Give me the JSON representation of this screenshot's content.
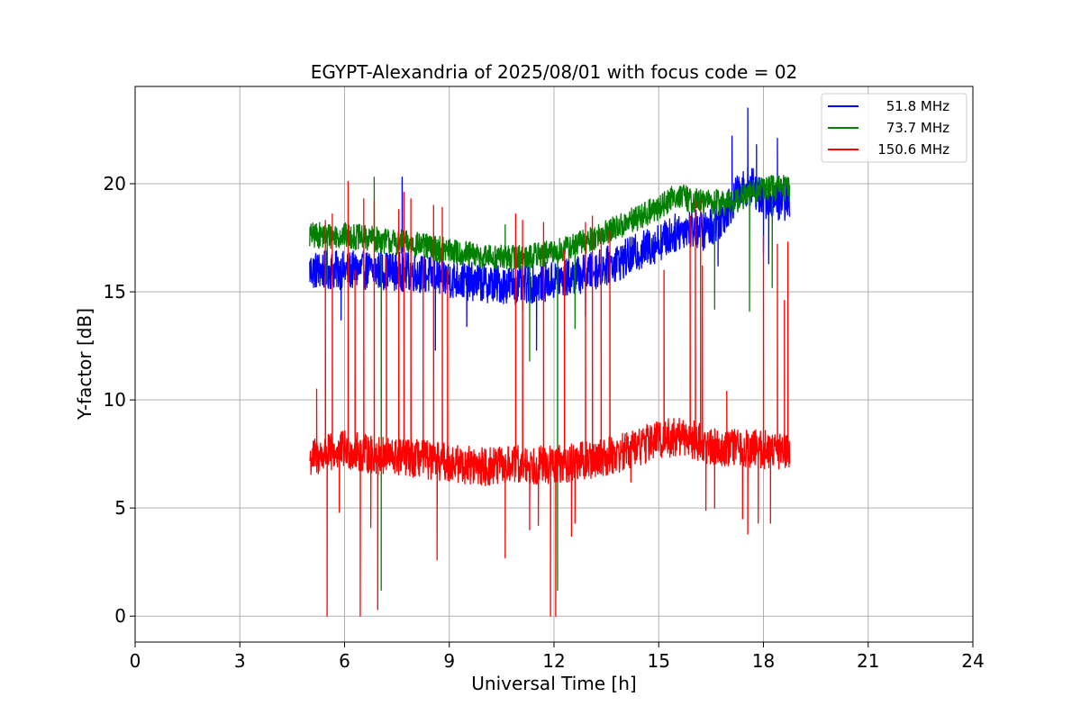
{
  "chart_data": {
    "type": "line",
    "title": "EGYPT-Alexandria of 2025/08/01 with focus code = 02",
    "xlabel": "Universal Time [h]",
    "ylabel": "Y-factor [dB]",
    "xlim": [
      0,
      24
    ],
    "ylim": [
      -1.2,
      24.5
    ],
    "x_ticks": [
      0,
      3,
      6,
      9,
      12,
      15,
      18,
      21,
      24
    ],
    "y_ticks": [
      0,
      5,
      10,
      15,
      20
    ],
    "grid": true,
    "legend_position": "top-right",
    "series": [
      {
        "name": "51.8 MHz",
        "color": "#0000ff",
        "baseline": [
          [
            5.0,
            16.0
          ],
          [
            6.0,
            16.0
          ],
          [
            7.0,
            16.0
          ],
          [
            8.0,
            15.9
          ],
          [
            9.0,
            15.6
          ],
          [
            10.0,
            15.4
          ],
          [
            11.0,
            15.3
          ],
          [
            12.0,
            15.5
          ],
          [
            13.0,
            15.9
          ],
          [
            14.0,
            16.5
          ],
          [
            15.0,
            17.3
          ],
          [
            15.8,
            18.0
          ],
          [
            16.3,
            17.8
          ],
          [
            16.8,
            18.4
          ],
          [
            17.2,
            19.4
          ],
          [
            17.6,
            20.0
          ],
          [
            18.0,
            19.3
          ],
          [
            18.4,
            19.2
          ],
          [
            18.75,
            19.2
          ]
        ],
        "noise": 0.9,
        "spikes": [
          [
            5.9,
            13.7
          ],
          [
            7.65,
            20.3
          ],
          [
            8.6,
            12.3
          ],
          [
            9.5,
            13.4
          ],
          [
            11.5,
            12.3
          ],
          [
            12.9,
            13.9
          ],
          [
            16.7,
            16.2
          ],
          [
            17.1,
            22.2
          ],
          [
            17.55,
            23.5
          ],
          [
            17.8,
            21.8
          ],
          [
            18.0,
            16.8
          ],
          [
            18.15,
            16.3
          ],
          [
            18.4,
            22.1
          ]
        ]
      },
      {
        "name": "73.7 MHz",
        "color": "#008000",
        "baseline": [
          [
            5.0,
            17.6
          ],
          [
            6.0,
            17.6
          ],
          [
            7.0,
            17.4
          ],
          [
            8.0,
            17.2
          ],
          [
            9.0,
            16.9
          ],
          [
            10.0,
            16.6
          ],
          [
            11.0,
            16.6
          ],
          [
            12.0,
            16.8
          ],
          [
            13.0,
            17.4
          ],
          [
            14.0,
            18.1
          ],
          [
            15.0,
            18.9
          ],
          [
            15.5,
            19.5
          ],
          [
            16.0,
            19.2
          ],
          [
            17.0,
            19.1
          ],
          [
            18.0,
            19.8
          ],
          [
            18.75,
            19.8
          ]
        ],
        "noise": 0.6,
        "spikes": [
          [
            5.5,
            15.5
          ],
          [
            6.85,
            20.3
          ],
          [
            7.05,
            1.2
          ],
          [
            12.1,
            1.2
          ],
          [
            11.1,
            14.1
          ],
          [
            11.3,
            11.8
          ],
          [
            12.6,
            13.3
          ],
          [
            16.6,
            14.2
          ],
          [
            17.6,
            14.1
          ],
          [
            18.25,
            15.2
          ],
          [
            10.6,
            18.1
          ]
        ]
      },
      {
        "name": "150.6 MHz",
        "color": "#ff0000",
        "baseline": [
          [
            5.0,
            7.3
          ],
          [
            6.0,
            7.7
          ],
          [
            7.0,
            7.4
          ],
          [
            8.0,
            7.3
          ],
          [
            9.0,
            7.1
          ],
          [
            10.0,
            6.9
          ],
          [
            11.0,
            7.0
          ],
          [
            12.0,
            7.0
          ],
          [
            13.0,
            7.2
          ],
          [
            14.0,
            7.6
          ],
          [
            15.0,
            8.2
          ],
          [
            15.8,
            8.3
          ],
          [
            16.3,
            7.9
          ],
          [
            17.0,
            7.8
          ],
          [
            18.0,
            7.7
          ],
          [
            18.75,
            7.7
          ]
        ],
        "noise": 0.9,
        "spikes": [
          [
            5.2,
            10.5
          ],
          [
            5.45,
            18.3
          ],
          [
            5.5,
            0.0
          ],
          [
            5.65,
            18.6
          ],
          [
            5.85,
            4.8
          ],
          [
            6.1,
            20.1
          ],
          [
            6.3,
            16.0
          ],
          [
            6.45,
            0.0
          ],
          [
            6.55,
            19.3
          ],
          [
            6.75,
            4.1
          ],
          [
            6.85,
            19.2
          ],
          [
            6.95,
            0.3
          ],
          [
            7.2,
            16.6
          ],
          [
            7.55,
            18.8
          ],
          [
            7.7,
            19.6
          ],
          [
            7.9,
            19.3
          ],
          [
            8.25,
            16.6
          ],
          [
            8.55,
            19.0
          ],
          [
            8.65,
            2.6
          ],
          [
            8.8,
            18.9
          ],
          [
            8.95,
            16.0
          ],
          [
            10.6,
            2.7
          ],
          [
            10.9,
            18.6
          ],
          [
            11.1,
            18.3
          ],
          [
            11.3,
            4.0
          ],
          [
            11.55,
            4.2
          ],
          [
            11.7,
            18.2
          ],
          [
            11.9,
            0.0
          ],
          [
            12.05,
            0.0
          ],
          [
            12.3,
            16.9
          ],
          [
            12.5,
            3.7
          ],
          [
            12.6,
            4.3
          ],
          [
            12.9,
            18.2
          ],
          [
            13.1,
            18.5
          ],
          [
            13.35,
            17.8
          ],
          [
            13.6,
            17.8
          ],
          [
            14.2,
            6.2
          ],
          [
            15.15,
            16.0
          ],
          [
            15.9,
            18.5
          ],
          [
            16.05,
            19.2
          ],
          [
            16.2,
            19.3
          ],
          [
            16.25,
            16.2
          ],
          [
            16.35,
            4.9
          ],
          [
            16.6,
            5.0
          ],
          [
            16.95,
            10.4
          ],
          [
            17.4,
            4.5
          ],
          [
            17.55,
            3.8
          ],
          [
            17.85,
            4.3
          ],
          [
            18.0,
            17.6
          ],
          [
            18.2,
            4.3
          ],
          [
            18.4,
            17.2
          ],
          [
            18.6,
            14.6
          ],
          [
            18.7,
            17.3
          ]
        ]
      }
    ]
  }
}
